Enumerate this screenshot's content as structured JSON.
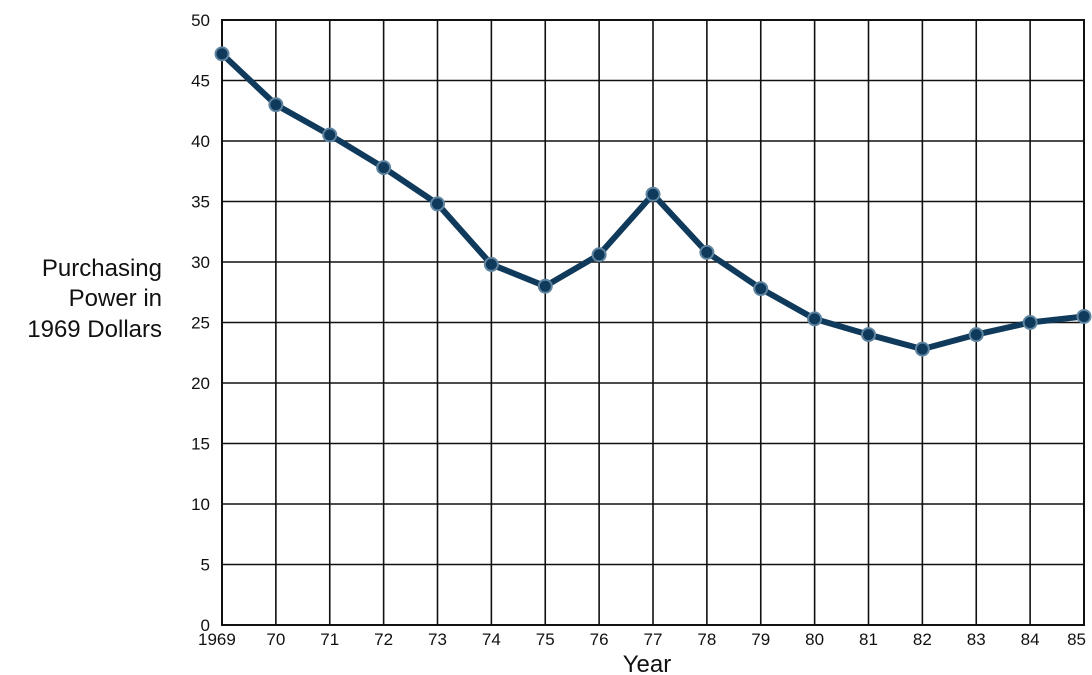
{
  "chart_data": {
    "type": "line",
    "title": "",
    "xlabel": "Year",
    "ylabel_lines": [
      "Purchasing",
      "Power in",
      "1969 Dollars"
    ],
    "x": [
      "1969",
      "70",
      "71",
      "72",
      "73",
      "74",
      "75",
      "76",
      "77",
      "78",
      "79",
      "80",
      "81",
      "82",
      "83",
      "84",
      "85"
    ],
    "series": [
      {
        "values": [
          47.2,
          43.0,
          40.5,
          37.8,
          34.8,
          29.8,
          28.0,
          30.6,
          35.6,
          30.8,
          27.8,
          25.3,
          24.0,
          22.8,
          24.0,
          25.0,
          25.5
        ]
      }
    ],
    "ylim": [
      0,
      50
    ],
    "yticks": [
      0,
      5,
      10,
      15,
      20,
      25,
      30,
      35,
      40,
      45,
      50
    ],
    "grid": true,
    "legend": "none",
    "line_color": "#0f3a5c"
  }
}
